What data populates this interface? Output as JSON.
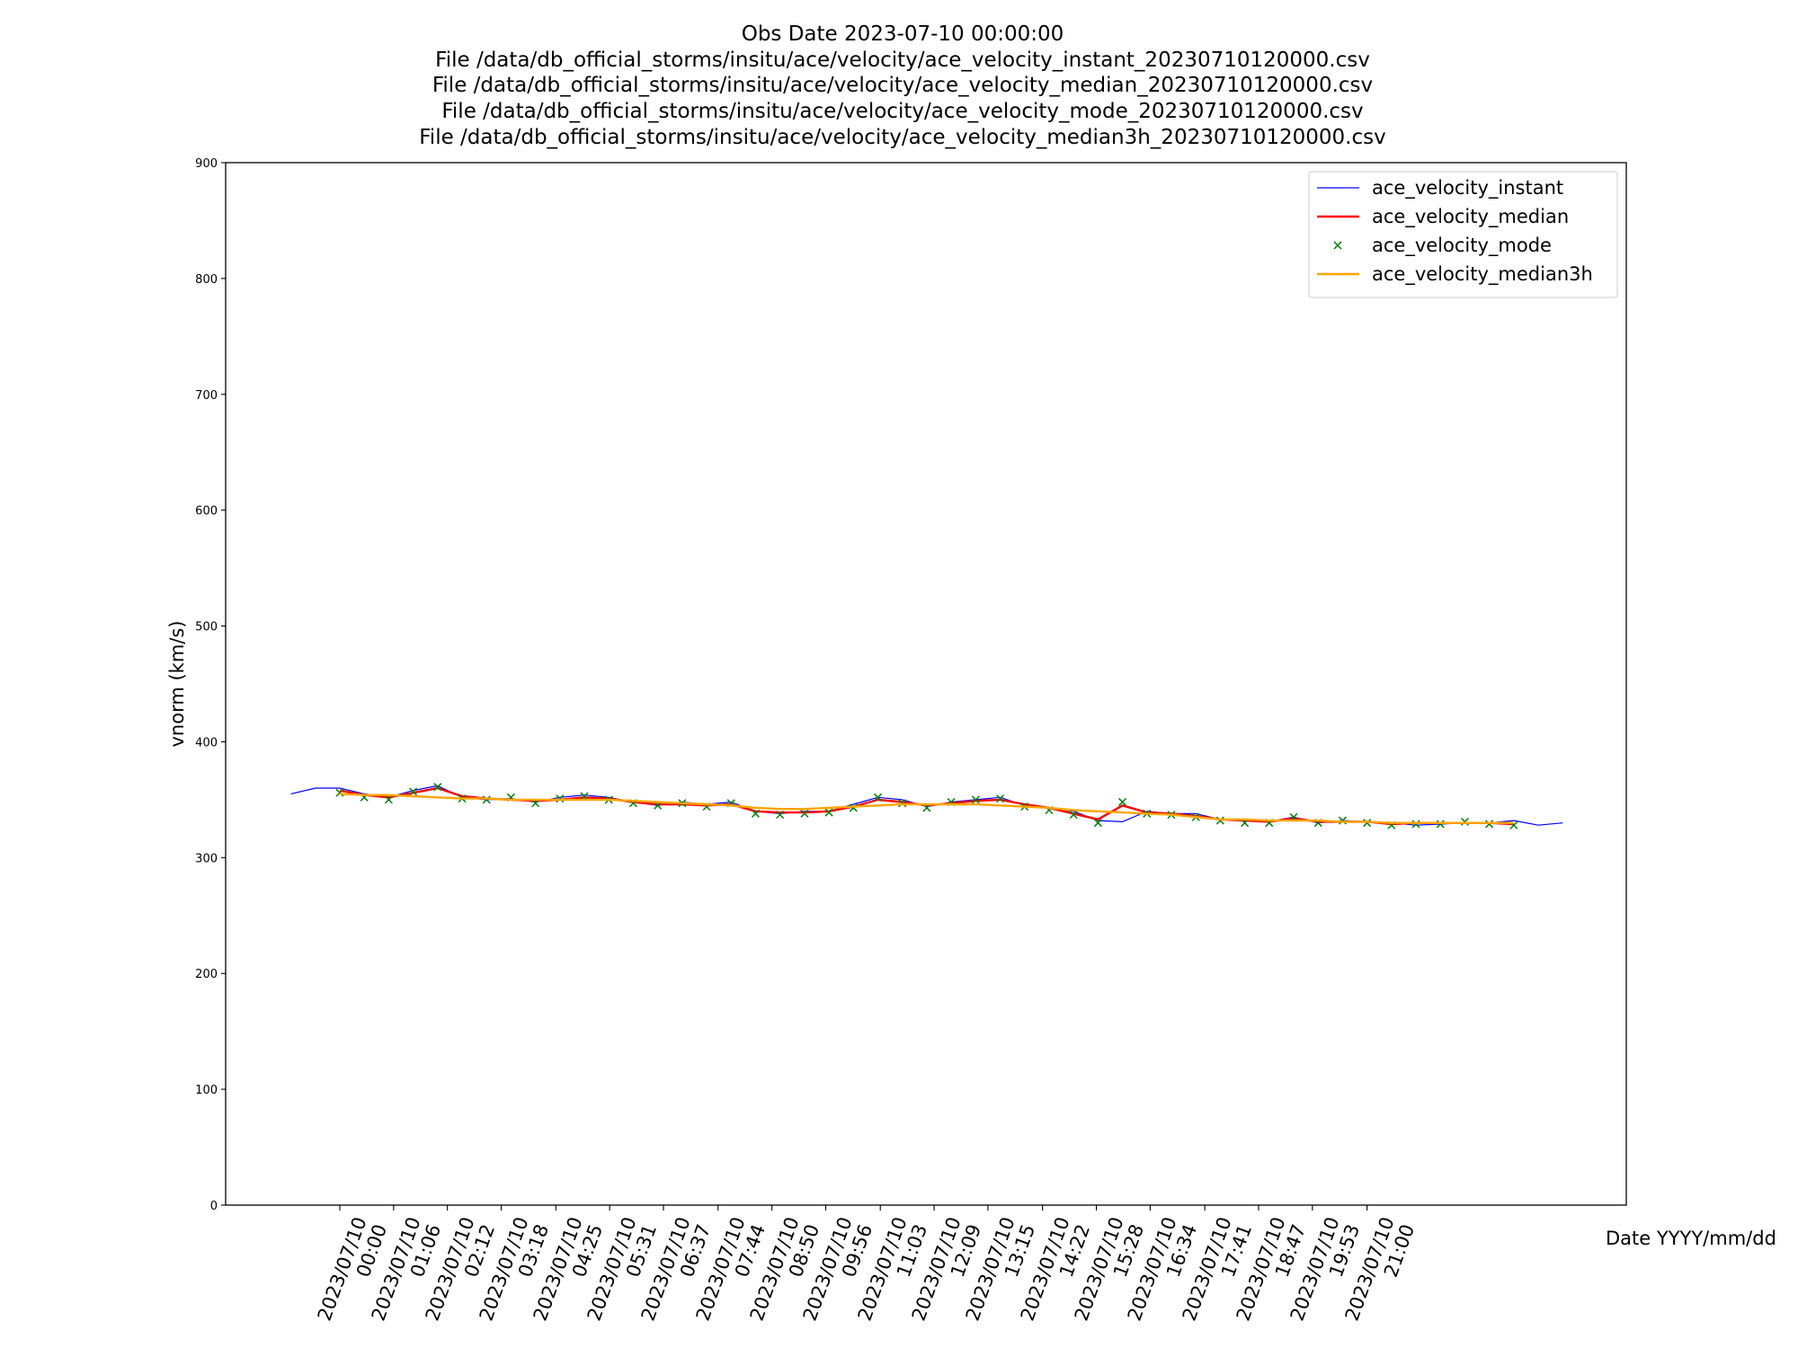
{
  "chart_data": {
    "type": "line",
    "title": "Obs Date 2023-07-10 00:00:00\nFile /data/db_official_storms/insitu/ace/velocity/ace_velocity_instant_20230710120000.csv\nFile /data/db_official_storms/insitu/ace/velocity/ace_velocity_median_20230710120000.csv\nFile /data/db_official_storms/insitu/ace/velocity/ace_velocity_mode_20230710120000.csv\nFile /data/db_official_storms/insitu/ace/velocity/ace_velocity_median3h_20230710120000.csv",
    "xlabel": "Date YYYY/mm/dd",
    "ylabel": "vnorm (km/s)",
    "legend": "upper right",
    "xlim": [
      "2023-07-09 21:40",
      "2023-07-11 02:18"
    ],
    "ylim": [
      0,
      900
    ],
    "yticks": [
      0,
      100,
      200,
      300,
      400,
      500,
      600,
      700,
      800,
      900
    ],
    "xticks": [
      {
        "value": "2023-07-10 00:00",
        "label": "2023/07/10\n00:00"
      },
      {
        "value": "2023-07-10 01:06",
        "label": "2023/07/10\n01:06"
      },
      {
        "value": "2023-07-10 02:12",
        "label": "2023/07/10\n02:12"
      },
      {
        "value": "2023-07-10 03:18",
        "label": "2023/07/10\n03:18"
      },
      {
        "value": "2023-07-10 04:25",
        "label": "2023/07/10\n04:25"
      },
      {
        "value": "2023-07-10 05:31",
        "label": "2023/07/10\n05:31"
      },
      {
        "value": "2023-07-10 06:37",
        "label": "2023/07/10\n06:37"
      },
      {
        "value": "2023-07-10 07:44",
        "label": "2023/07/10\n07:44"
      },
      {
        "value": "2023-07-10 08:50",
        "label": "2023/07/10\n08:50"
      },
      {
        "value": "2023-07-10 09:56",
        "label": "2023/07/10\n09:56"
      },
      {
        "value": "2023-07-10 11:03",
        "label": "2023/07/10\n11:03"
      },
      {
        "value": "2023-07-10 12:09",
        "label": "2023/07/10\n12:09"
      },
      {
        "value": "2023-07-10 13:15",
        "label": "2023/07/10\n13:15"
      },
      {
        "value": "2023-07-10 14:22",
        "label": "2023/07/10\n14:22"
      },
      {
        "value": "2023-07-10 15:28",
        "label": "2023/07/10\n15:28"
      },
      {
        "value": "2023-07-10 16:34",
        "label": "2023/07/10\n16:34"
      },
      {
        "value": "2023-07-10 17:41",
        "label": "2023/07/10\n17:41"
      },
      {
        "value": "2023-07-10 18:47",
        "label": "2023/07/10\n18:47"
      },
      {
        "value": "2023-07-10 19:53",
        "label": "2023/07/10\n19:53"
      },
      {
        "value": "2023-07-10 21:00",
        "label": "2023/07/10\n21:00"
      }
    ],
    "x": [
      "2023-07-09 23:00",
      "2023-07-09 23:30",
      "2023-07-10 00:00",
      "2023-07-10 00:30",
      "2023-07-10 01:00",
      "2023-07-10 01:30",
      "2023-07-10 02:00",
      "2023-07-10 02:30",
      "2023-07-10 03:00",
      "2023-07-10 03:30",
      "2023-07-10 04:00",
      "2023-07-10 04:30",
      "2023-07-10 05:00",
      "2023-07-10 05:30",
      "2023-07-10 06:00",
      "2023-07-10 06:30",
      "2023-07-10 07:00",
      "2023-07-10 07:30",
      "2023-07-10 08:00",
      "2023-07-10 08:30",
      "2023-07-10 09:00",
      "2023-07-10 09:30",
      "2023-07-10 10:00",
      "2023-07-10 10:30",
      "2023-07-10 11:00",
      "2023-07-10 11:30",
      "2023-07-10 12:00",
      "2023-07-10 12:30",
      "2023-07-10 13:00",
      "2023-07-10 13:30",
      "2023-07-10 14:00",
      "2023-07-10 14:30",
      "2023-07-10 15:00",
      "2023-07-10 15:30",
      "2023-07-10 16:00",
      "2023-07-10 16:30",
      "2023-07-10 17:00",
      "2023-07-10 17:30",
      "2023-07-10 18:00",
      "2023-07-10 18:30",
      "2023-07-10 19:00",
      "2023-07-10 19:30",
      "2023-07-10 20:00",
      "2023-07-10 20:30",
      "2023-07-10 21:00",
      "2023-07-10 21:30",
      "2023-07-10 22:00",
      "2023-07-10 22:30",
      "2023-07-10 23:00",
      "2023-07-10 23:30",
      "2023-07-11 00:00",
      "2023-07-11 00:30",
      "2023-07-11 01:00"
    ],
    "series": [
      {
        "name": "ace_velocity_instant",
        "color": "#0000ff",
        "style": "line-dot",
        "values": [
          355,
          360,
          360,
          355,
          352,
          358,
          362,
          352,
          350,
          351,
          348,
          352,
          354,
          352,
          348,
          345,
          348,
          346,
          348,
          340,
          338,
          340,
          340,
          346,
          352,
          350,
          344,
          348,
          350,
          352,
          345,
          343,
          340,
          332,
          331,
          340,
          338,
          338,
          333,
          332,
          331,
          335,
          330,
          332,
          331,
          330,
          328,
          329,
          330,
          330,
          332,
          328,
          330
        ]
      },
      {
        "name": "ace_velocity_median",
        "color": "#ff0000",
        "style": "line",
        "values": [
          null,
          null,
          358,
          354,
          352,
          356,
          360,
          353,
          351,
          350,
          349,
          350,
          352,
          351,
          348,
          346,
          346,
          345,
          346,
          340,
          339,
          339,
          340,
          344,
          350,
          348,
          345,
          347,
          349,
          350,
          346,
          343,
          338,
          333,
          345,
          339,
          338,
          336,
          333,
          332,
          331,
          334,
          331,
          331,
          331,
          329,
          330,
          330,
          330,
          330,
          329,
          null,
          null
        ]
      },
      {
        "name": "ace_velocity_mode",
        "color": "#008000",
        "style": "marker-x",
        "values": [
          null,
          null,
          356,
          352,
          350,
          357,
          361,
          351,
          350,
          352,
          347,
          351,
          353,
          350,
          347,
          345,
          347,
          344,
          347,
          338,
          337,
          338,
          339,
          343,
          352,
          347,
          343,
          348,
          350,
          351,
          344,
          341,
          337,
          330,
          348,
          338,
          337,
          335,
          332,
          330,
          330,
          335,
          330,
          332,
          330,
          328,
          329,
          329,
          331,
          329,
          328,
          null,
          null
        ]
      },
      {
        "name": "ace_velocity_median3h",
        "color": "#ffa500",
        "style": "line",
        "values": [
          null,
          null,
          355,
          354,
          354,
          353,
          352,
          351,
          351,
          350,
          350,
          350,
          350,
          350,
          349,
          348,
          347,
          346,
          345,
          343,
          342,
          342,
          343,
          344,
          345,
          346,
          346,
          346,
          346,
          345,
          344,
          343,
          341,
          340,
          339,
          338,
          337,
          335,
          333,
          333,
          332,
          332,
          332,
          331,
          331,
          330,
          330,
          330,
          330,
          330,
          330,
          null,
          null
        ]
      }
    ]
  }
}
